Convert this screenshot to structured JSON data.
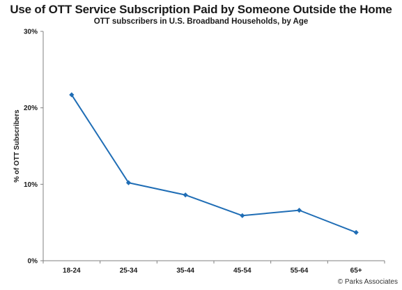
{
  "chart_data": {
    "type": "line",
    "title": "Use of OTT Service Subscription Paid by Someone Outside the Home",
    "subtitle": "OTT subscribers in U.S. Broadband Households, by Age",
    "xlabel": "",
    "ylabel": "% of OTT Subscribers",
    "categories": [
      "18-24",
      "25-34",
      "35-44",
      "45-54",
      "55-64",
      "65+"
    ],
    "series": [
      {
        "values": [
          21.7,
          10.2,
          8.6,
          5.9,
          6.6,
          3.7
        ],
        "color": "#1f6db5"
      }
    ],
    "ylim": [
      0,
      30
    ],
    "yticks": [
      0,
      10,
      20,
      30
    ],
    "ytick_labels": [
      "0%",
      "10%",
      "20%",
      "30%"
    ],
    "grid": false,
    "legend": "none"
  },
  "source": "© Parks Associates"
}
